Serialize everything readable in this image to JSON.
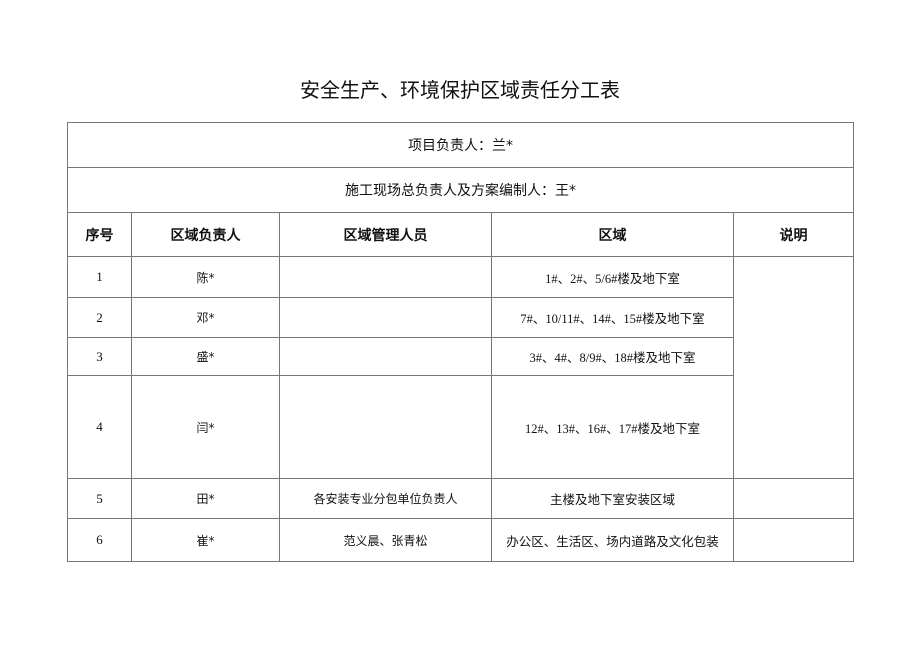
{
  "title": "安全生产、环境保护区域责任分工表",
  "project_leader": "项目负责人：兰*",
  "site_leader": "施工现场总负责人及方案编制人：王*",
  "headers": [
    "序号",
    "区域负责人",
    "区域管理人员",
    "区域",
    "说明"
  ],
  "rows": [
    {
      "no": "1",
      "leader": "陈*",
      "staff": "",
      "area": "1#、2#、5/6#楼及地下室",
      "note": ""
    },
    {
      "no": "2",
      "leader": "邓*",
      "staff": "",
      "area": "7#、10/11#、14#、15#楼及地下室",
      "note": ""
    },
    {
      "no": "3",
      "leader": "盛*",
      "staff": "",
      "area": "3#、4#、8/9#、18#楼及地下室",
      "note": ""
    },
    {
      "no": "4",
      "leader": "闫*",
      "staff": "",
      "area": "12#、13#、16#、17#楼及地下室",
      "note": ""
    },
    {
      "no": "5",
      "leader": "田*",
      "staff": "各安装专业分包单位负责人",
      "area": "主楼及地下室安装区域",
      "note": ""
    },
    {
      "no": "6",
      "leader": "崔*",
      "staff": "范义晨、张青松",
      "area": "办公区、生活区、场内道路及文化包装",
      "note": ""
    }
  ]
}
